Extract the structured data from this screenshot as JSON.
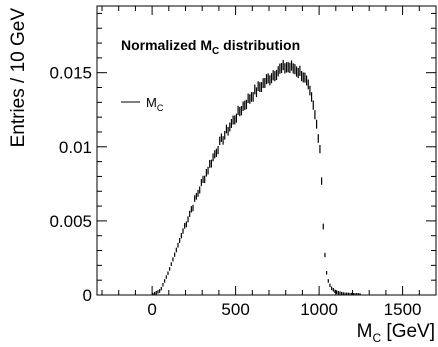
{
  "chart_data": {
    "type": "line",
    "title": "Normalized M",
    "title_sub": "C",
    "title_rest": " distribution",
    "xlabel": "M",
    "xlabel_sub": "C",
    "xlabel_unit": " [GeV]",
    "ylabel": "Entries / 10 GeV",
    "xlim": [
      -330,
      1700
    ],
    "ylim": [
      0,
      0.0195
    ],
    "x_ticks": [
      0,
      500,
      1000,
      1500
    ],
    "x_tick_labels": [
      "0",
      "500",
      "1000",
      "1500"
    ],
    "y_ticks": [
      0,
      0.005,
      0.01,
      0.015
    ],
    "y_tick_labels": [
      "0",
      "0.005",
      "0.01",
      "0.015"
    ],
    "grid": false,
    "legend_position": "upper-left",
    "series": [
      {
        "name": "M",
        "name_sub": "C",
        "style": "error-bars",
        "color": "#000000",
        "x": [
          0,
          50,
          100,
          150,
          200,
          250,
          300,
          350,
          400,
          450,
          500,
          550,
          600,
          650,
          700,
          750,
          800,
          850,
          900,
          930,
          960,
          990,
          1010,
          1020,
          1030,
          1040,
          1050,
          1070,
          1100,
          1150,
          1200,
          1250
        ],
        "y": [
          0.0,
          0.0003,
          0.0016,
          0.0032,
          0.0048,
          0.0062,
          0.0076,
          0.0089,
          0.0101,
          0.0111,
          0.012,
          0.0128,
          0.0135,
          0.0141,
          0.0146,
          0.0151,
          0.0154,
          0.0153,
          0.0149,
          0.0142,
          0.013,
          0.0112,
          0.0095,
          0.006,
          0.0035,
          0.0019,
          0.0011,
          0.0005,
          0.0002,
          5e-05,
          2e-05,
          0.0
        ]
      }
    ]
  }
}
